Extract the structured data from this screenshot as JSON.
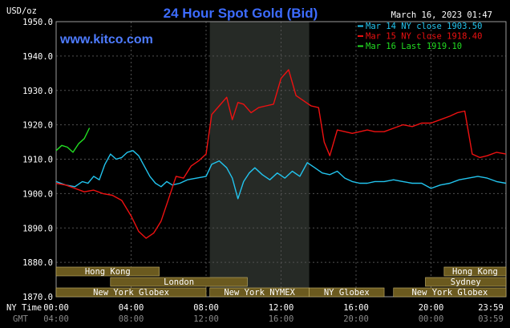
{
  "title": "24 Hour Spot Gold (Bid)",
  "brand": "www.kitco.com",
  "timestamp": "March 16, 2023 01:47",
  "unit_label": "USD/oz",
  "ny_time_label": "NY Time",
  "gmt_label": "GMT",
  "colors": {
    "background": "#000000",
    "plot_border": "#9a9a9a",
    "grid": "#505050",
    "shaded": "#262a26",
    "mar14": "#22c4ee",
    "mar15": "#ee1111",
    "mar16": "#22dd22",
    "session_bar": "#6b5a1f",
    "session_text": "#ffffff"
  },
  "markets": [
    {
      "name": "Hong Kong",
      "start": 0,
      "end": 5.5
    },
    {
      "name": "London",
      "start": 2.9,
      "end": 10.2
    },
    {
      "name": "New York Globex",
      "start": -1,
      "end": 8.0
    },
    {
      "name": "New York NYMEX",
      "start": 8.2,
      "end": 13.5
    },
    {
      "name": "NY Globex",
      "start": 13.5,
      "end": 17.5
    },
    {
      "name": "Sydney",
      "start": 19.7,
      "end": 24.0
    },
    {
      "name": "Hong Kong",
      "start": 20.7,
      "end": 24.0
    },
    {
      "name": "New York Globex",
      "start": 18.0,
      "end": 24.0
    }
  ],
  "chart_data": {
    "type": "line",
    "title": "24 Hour Spot Gold (Bid)",
    "ylabel": "USD/oz",
    "ylim": [
      1870,
      1950
    ],
    "xlim": [
      0,
      24
    ],
    "yticks": [
      "1950.0",
      "1940.0",
      "1930.0",
      "1920.0",
      "1910.0",
      "1900.0",
      "1890.0",
      "1880.0",
      "1870.0"
    ],
    "ytick_values": [
      1950,
      1940,
      1930,
      1920,
      1910,
      1900,
      1890,
      1880,
      1870
    ],
    "xticks_ny": [
      "00:00",
      "04:00",
      "08:00",
      "12:00",
      "16:00",
      "20:00",
      "23:59"
    ],
    "xticks_gmt": [
      "04:00",
      "08:00",
      "12:00",
      "16:00",
      "20:00",
      "00:00",
      "03:59"
    ],
    "xtick_hours": [
      0,
      4,
      8,
      12,
      16,
      20,
      24
    ],
    "shaded_hours": [
      8.2,
      13.5
    ],
    "grid": true,
    "legend_position": "top-right",
    "series": [
      {
        "name": "Mar 14 NY close 1903.50",
        "color": "#22c4ee",
        "x": [
          0,
          0.5,
          1.0,
          1.4,
          1.7,
          2.0,
          2.3,
          2.6,
          2.9,
          3.2,
          3.5,
          3.8,
          4.1,
          4.4,
          4.7,
          5.0,
          5.3,
          5.6,
          5.9,
          6.2,
          6.6,
          7.0,
          7.5,
          8.0,
          8.3,
          8.7,
          9.1,
          9.4,
          9.7,
          10.0,
          10.3,
          10.6,
          11.0,
          11.4,
          11.8,
          12.2,
          12.6,
          13.0,
          13.4,
          13.8,
          14.2,
          14.6,
          15.0,
          15.4,
          15.8,
          16.2,
          16.6,
          17.0,
          17.5,
          18.0,
          18.5,
          19.0,
          19.5,
          20.0,
          20.5,
          21.0,
          21.5,
          22.0,
          22.5,
          23.0,
          23.5,
          24.0
        ],
        "values": [
          1903.5,
          1902.5,
          1902.0,
          1903.5,
          1903.0,
          1905.0,
          1904.0,
          1908.5,
          1911.5,
          1910.0,
          1910.5,
          1912.0,
          1912.5,
          1911.0,
          1908.0,
          1905.0,
          1903.0,
          1902.0,
          1903.5,
          1902.5,
          1903.0,
          1904.0,
          1904.5,
          1905.0,
          1908.5,
          1909.5,
          1907.5,
          1904.5,
          1898.5,
          1903.5,
          1906.0,
          1907.5,
          1905.5,
          1904.0,
          1906.0,
          1904.5,
          1906.5,
          1905.0,
          1909.0,
          1907.5,
          1906.0,
          1905.5,
          1906.5,
          1904.5,
          1903.5,
          1903.0,
          1903.0,
          1903.5,
          1903.5,
          1904.0,
          1903.5,
          1903.0,
          1903.0,
          1901.5,
          1902.5,
          1903.0,
          1904.0,
          1904.5,
          1905.0,
          1904.5,
          1903.5,
          1903.0
        ]
      },
      {
        "name": "Mar 15 NY close 1918.40",
        "color": "#ee1111",
        "x": [
          0,
          0.5,
          1.0,
          1.5,
          2.0,
          2.5,
          3.0,
          3.5,
          4.0,
          4.4,
          4.8,
          5.2,
          5.6,
          6.0,
          6.4,
          6.8,
          7.2,
          7.6,
          8.0,
          8.3,
          8.7,
          9.1,
          9.4,
          9.7,
          10.0,
          10.4,
          10.8,
          11.2,
          11.6,
          12.0,
          12.4,
          12.8,
          13.2,
          13.6,
          14.0,
          14.3,
          14.6,
          15.0,
          15.4,
          15.8,
          16.2,
          16.6,
          17.0,
          17.5,
          18.0,
          18.5,
          19.0,
          19.5,
          20.0,
          20.5,
          21.0,
          21.4,
          21.8,
          22.2,
          22.6,
          23.0,
          23.5,
          24.0
        ],
        "values": [
          1903.0,
          1902.5,
          1901.5,
          1900.5,
          1901.0,
          1900.0,
          1899.5,
          1898.0,
          1893.5,
          1889.0,
          1887.0,
          1888.5,
          1892.0,
          1898.5,
          1905.0,
          1904.5,
          1908.0,
          1909.5,
          1911.5,
          1923.0,
          1925.5,
          1928.0,
          1921.5,
          1926.5,
          1926.0,
          1923.5,
          1925.0,
          1925.5,
          1926.0,
          1933.5,
          1936.0,
          1928.5,
          1927.0,
          1925.5,
          1925.0,
          1915.0,
          1911.0,
          1918.5,
          1918.0,
          1917.5,
          1918.0,
          1918.5,
          1918.0,
          1918.0,
          1919.0,
          1920.0,
          1919.5,
          1920.5,
          1920.5,
          1921.5,
          1922.5,
          1923.5,
          1924.0,
          1911.5,
          1910.5,
          1911.0,
          1912.0,
          1911.5
        ]
      },
      {
        "name": "Mar 16 Last 1919.10",
        "color": "#22dd22",
        "x": [
          0,
          0.3,
          0.6,
          0.9,
          1.2,
          1.5,
          1.78
        ],
        "values": [
          1912.5,
          1914.0,
          1913.5,
          1912.0,
          1914.5,
          1916.0,
          1919.1
        ]
      }
    ]
  }
}
